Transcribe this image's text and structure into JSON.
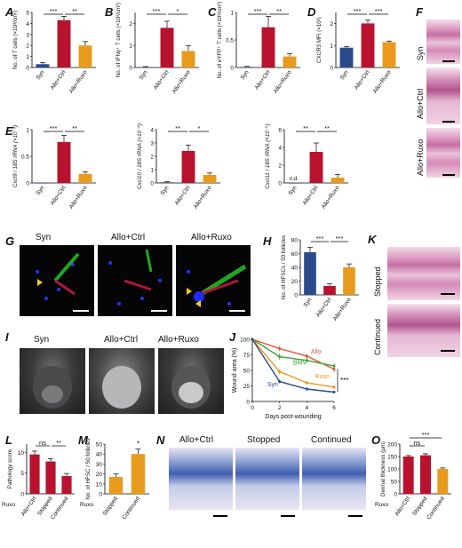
{
  "panels": {
    "A": {
      "letter": "A",
      "ylabel": "No. of T cells (×10³/cm²)"
    },
    "B": {
      "letter": "B",
      "ylabel": "No. of IFNγ⁺ T cells (×10²/cm²)"
    },
    "C": {
      "letter": "C",
      "ylabel": "No. of eYFP⁺ T cells (×10²/cm²)"
    },
    "D": {
      "letter": "D",
      "ylabel": "CXCR3 MFI (×10³)"
    },
    "E1": {
      "letter": "E",
      "ylabel": "Cxcl9 / 18S rRNA (×10⁻³)"
    },
    "E2": {
      "ylabel": "Cxcl10 / 18S rRNA (×10⁻⁴)"
    },
    "E3": {
      "ylabel": "Cxcl11 / 18S rRNA (×10⁻⁵)",
      "nd_label": "n.d."
    },
    "F": {
      "letter": "F",
      "rows": [
        "Syn",
        "Allo+Ctrl",
        "Allo+Ruxo"
      ]
    },
    "G": {
      "letter": "G",
      "cols": [
        "Syn",
        "Allo+Ctrl",
        "Allo+Ruxo"
      ]
    },
    "H": {
      "letter": "H",
      "ylabel": "No. of HFSCs / 50 follicles"
    },
    "I": {
      "letter": "I",
      "cols": [
        "Syn",
        "Allo+Ctrl",
        "Allo+Ruxo"
      ]
    },
    "J": {
      "letter": "J",
      "ylabel": "Wound area (%)",
      "xlabel": "Days post-wounding"
    },
    "K": {
      "letter": "K",
      "rows": [
        "Stopped",
        "Continued"
      ]
    },
    "L": {
      "letter": "L",
      "ylabel": "Pathology score",
      "ruxo": "Ruxo"
    },
    "M": {
      "letter": "M",
      "ylabel": "No. of HFSC / 50 follicles",
      "ruxo": "Ruxo"
    },
    "N": {
      "letter": "N",
      "cols": [
        "Allo+Ctrl",
        "Stopped",
        "Continued"
      ]
    },
    "O": {
      "letter": "O",
      "ylabel": "Dermal thickness (μm)",
      "ruxo": "Ruxo"
    }
  },
  "colors": {
    "syn": "#2b4a8b",
    "ctrl": "#b8122e",
    "ruxo": "#e89a1c",
    "bmv": "#3aa43a",
    "allo_line": "#e3522e"
  },
  "chart_data": [
    {
      "id": "A",
      "type": "bar",
      "categories": [
        "Syn",
        "Allo+Ctrl",
        "Allo+Ruxo"
      ],
      "values": [
        0.3,
        4.3,
        2.0
      ],
      "errors": [
        0.15,
        0.35,
        0.35
      ],
      "ylim": [
        0,
        5
      ],
      "yticks": [
        0,
        1,
        2,
        3,
        4,
        5
      ],
      "sig": [
        {
          "from": 0,
          "to": 1,
          "label": "***",
          "level": 0
        },
        {
          "from": 1,
          "to": 2,
          "label": "**",
          "level": 0
        }
      ],
      "xlabel": "",
      "ylabel": "No. of T cells (×10³/cm²)"
    },
    {
      "id": "B",
      "type": "bar",
      "categories": [
        "Syn",
        "Allo+Ctrl",
        "Allo+Ruxo"
      ],
      "values": [
        0.02,
        1.8,
        0.75
      ],
      "errors": [
        0.02,
        0.3,
        0.25
      ],
      "ylim": [
        0,
        2.5
      ],
      "yticks": [
        0,
        1,
        2
      ],
      "sig": [
        {
          "from": 0,
          "to": 1,
          "label": "***",
          "level": 0
        },
        {
          "from": 1,
          "to": 2,
          "label": "*",
          "level": 0
        }
      ],
      "xlabel": "",
      "ylabel": "No. of IFNγ⁺ T cells (×10²/cm²)"
    },
    {
      "id": "C",
      "type": "bar",
      "categories": [
        "Syn",
        "Allo+Ctrl",
        "Allo+Ruxo"
      ],
      "values": [
        0.01,
        0.73,
        0.2
      ],
      "errors": [
        0.01,
        0.2,
        0.05
      ],
      "ylim": [
        0,
        1.0
      ],
      "yticks": [
        0,
        0.5,
        1.0
      ],
      "sig": [
        {
          "from": 0,
          "to": 1,
          "label": "***",
          "level": 0
        },
        {
          "from": 1,
          "to": 2,
          "label": "**",
          "level": 0
        }
      ],
      "xlabel": "",
      "ylabel": "No. of eYFP⁺ T cells (×10²/cm²)"
    },
    {
      "id": "D",
      "type": "bar",
      "categories": [
        "Syn",
        "Allo+Ctrl",
        "Allo+Ruxo"
      ],
      "values": [
        0.9,
        2.0,
        1.15
      ],
      "errors": [
        0.05,
        0.15,
        0.05
      ],
      "ylim": [
        0,
        2.5
      ],
      "yticks": [
        0,
        1,
        2
      ],
      "sig": [
        {
          "from": 0,
          "to": 1,
          "label": "***",
          "level": 0
        },
        {
          "from": 1,
          "to": 2,
          "label": "***",
          "level": 0
        }
      ],
      "xlabel": "",
      "ylabel": "CXCR3 MFI (×10³)"
    },
    {
      "id": "E1",
      "type": "bar",
      "categories": [
        "Syn",
        "Allo+Ctrl",
        "Allo+Ruxo"
      ],
      "values": [
        0.0,
        0.77,
        0.17
      ],
      "errors": [
        0.0,
        0.12,
        0.04
      ],
      "ylim": [
        0,
        1.0
      ],
      "yticks": [
        0,
        0.5,
        1.0
      ],
      "sig": [
        {
          "from": 0,
          "to": 1,
          "label": "***",
          "level": 0
        },
        {
          "from": 1,
          "to": 2,
          "label": "**",
          "level": 0
        }
      ],
      "xlabel": "",
      "ylabel": "Cxcl9 / 18S rRNA (×10⁻³)"
    },
    {
      "id": "E2",
      "type": "bar",
      "categories": [
        "Syn",
        "Allo+Ctrl",
        "Allo+Ruxo"
      ],
      "values": [
        0.05,
        2.4,
        0.6
      ],
      "errors": [
        0.05,
        0.45,
        0.15
      ],
      "ylim": [
        0,
        4
      ],
      "yticks": [
        0,
        1,
        2,
        3,
        4
      ],
      "sig": [
        {
          "from": 0,
          "to": 1,
          "label": "**",
          "level": 0
        },
        {
          "from": 1,
          "to": 2,
          "label": "*",
          "level": 0
        }
      ],
      "xlabel": "",
      "ylabel": "Cxcl10 / 18S rRNA (×10⁻⁴)"
    },
    {
      "id": "E3",
      "type": "bar",
      "categories": [
        "Syn",
        "Allo+Ctrl",
        "Allo+Ruxo"
      ],
      "values": [
        0.0,
        3.5,
        0.6
      ],
      "errors": [
        0.0,
        1.0,
        0.35
      ],
      "ylim": [
        0,
        6
      ],
      "yticks": [
        0,
        2,
        4,
        6
      ],
      "sig": [
        {
          "from": 0,
          "to": 1,
          "label": "**",
          "level": 0
        },
        {
          "from": 1,
          "to": 2,
          "label": "**",
          "level": 0
        }
      ],
      "xlabel": "",
      "ylabel": "Cxcl11 / 18S rRNA (×10⁻⁵)"
    },
    {
      "id": "H",
      "type": "bar",
      "categories": [
        "Syn",
        "Allo+Ctrl",
        "Allo+Ruxo"
      ],
      "values": [
        62,
        13,
        40
      ],
      "errors": [
        7,
        3,
        5
      ],
      "ylim": [
        0,
        80
      ],
      "yticks": [
        0,
        20,
        40,
        60,
        80
      ],
      "sig": [
        {
          "from": 0,
          "to": 1,
          "label": "***",
          "level": 0
        },
        {
          "from": 1,
          "to": 2,
          "label": "***",
          "level": 0
        }
      ],
      "xlabel": "",
      "ylabel": "No. of HFSCs / 50 follicles"
    },
    {
      "id": "J",
      "type": "line",
      "x": [
        0,
        2,
        4,
        6
      ],
      "xlim": [
        0,
        6
      ],
      "ylim": [
        0,
        100
      ],
      "yticks": [
        0,
        25,
        50,
        75,
        100
      ],
      "xticks": [
        0,
        2,
        4,
        6
      ],
      "series": [
        {
          "name": "Allo",
          "key": "allo_line",
          "values": [
            100,
            85,
            73,
            52
          ],
          "errors": [
            0,
            4,
            3,
            5
          ]
        },
        {
          "name": "BMV",
          "key": "bmv",
          "values": [
            100,
            72,
            66,
            57
          ],
          "errors": [
            0,
            5,
            4,
            4
          ]
        },
        {
          "name": "Ruxo",
          "key": "ruxo",
          "values": [
            100,
            48,
            30,
            23
          ],
          "errors": [
            0,
            4,
            3,
            3
          ]
        },
        {
          "name": "Syn",
          "key": "syn",
          "values": [
            100,
            32,
            20,
            15
          ],
          "errors": [
            0,
            3,
            3,
            2
          ]
        }
      ],
      "sig_label": "***",
      "xlabel": "Days post-wounding",
      "ylabel": "Wound area (%)"
    },
    {
      "id": "L",
      "type": "bar",
      "categories": [
        "Allo+Ctrl",
        "Stopped",
        "Continued"
      ],
      "values": [
        9.5,
        7.8,
        4.3
      ],
      "errors": [
        0.8,
        0.7,
        0.6
      ],
      "ylim": [
        0,
        12
      ],
      "yticks": [
        0,
        5,
        10
      ],
      "sig": [
        {
          "from": 0,
          "to": 1,
          "label": "ns",
          "level": 0
        },
        {
          "from": 1,
          "to": 2,
          "label": "**",
          "level": 0
        }
      ],
      "xlabel": "",
      "ylabel": "Pathology score"
    },
    {
      "id": "M",
      "type": "bar",
      "categories": [
        "Stopped",
        "Continued"
      ],
      "values": [
        17,
        40
      ],
      "errors": [
        3,
        5
      ],
      "ylim": [
        0,
        50
      ],
      "yticks": [
        0,
        10,
        20,
        30,
        40,
        50
      ],
      "sig": [
        {
          "from": 1,
          "to": 1,
          "label": "*",
          "level": 0
        }
      ],
      "xlabel": "",
      "ylabel": "No. of HFSC / 50 follicles"
    },
    {
      "id": "O",
      "type": "bar",
      "categories": [
        "Allo+Ctrl",
        "Stopped",
        "Continued"
      ],
      "values": [
        150,
        155,
        100
      ],
      "errors": [
        4,
        6,
        4
      ],
      "ylim": [
        0,
        200
      ],
      "yticks": [
        0,
        50,
        100,
        150,
        200
      ],
      "sig": [
        {
          "from": 0,
          "to": 1,
          "label": "ns",
          "level": 0
        },
        {
          "from": 0,
          "to": 2,
          "label": "***",
          "level": 1
        }
      ],
      "xlabel": "",
      "ylabel": "Dermal thickness (μm)"
    }
  ]
}
